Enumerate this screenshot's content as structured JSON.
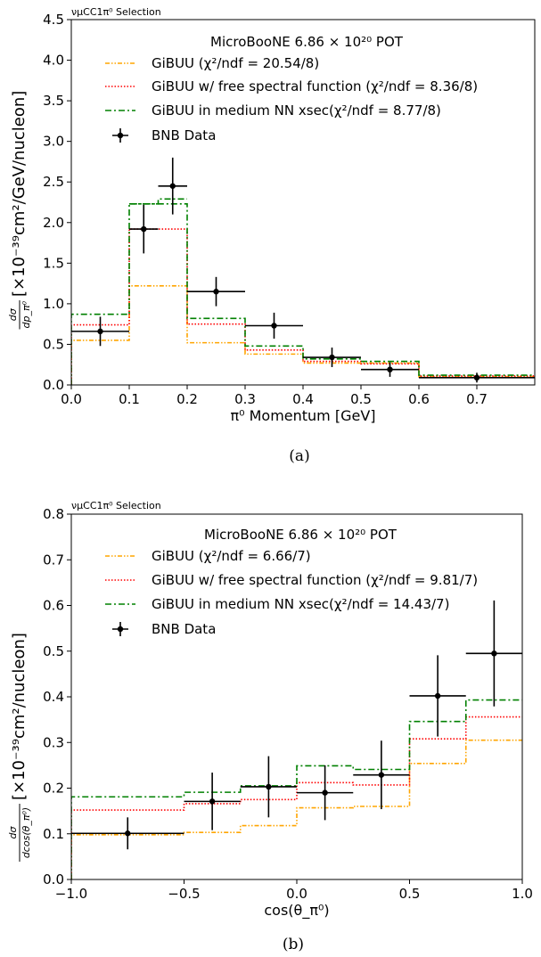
{
  "chart_data": [
    {
      "type": "step",
      "caption": "(a)",
      "selection_label": "νμCC1π⁰ Selection",
      "title": "MicroBooNE 6.86 × 10²⁰ POT",
      "xlabel": "π⁰ Momentum [GeV]",
      "ylabel_fraction": "dσ/dp_π⁰",
      "ylabel_units": "[×10⁻³⁹cm²/GeV/nucleon]",
      "xlim": [
        0.0,
        0.8
      ],
      "ylim": [
        0.0,
        4.5
      ],
      "xticks": [
        "0.0",
        "0.1",
        "0.2",
        "0.3",
        "0.4",
        "0.5",
        "0.6",
        "0.7"
      ],
      "yticks": [
        "0.0",
        "0.5",
        "1.0",
        "1.5",
        "2.0",
        "2.5",
        "3.0",
        "3.5",
        "4.0",
        "4.5"
      ],
      "bin_edges": [
        0.0,
        0.1,
        0.2,
        0.3,
        0.4,
        0.5,
        0.6,
        0.8
      ],
      "series": [
        {
          "name": "GiBUU (χ²/ndf = 20.54/8)",
          "color": "#ffa500",
          "dash": "dashdotdot",
          "values": [
            0.55,
            1.22,
            0.52,
            0.38,
            0.27,
            0.27,
            0.1
          ]
        },
        {
          "name": "GiBUU w/ free spectral function (χ²/ndf = 8.36/8)",
          "color": "#ff0000",
          "dash": "dotted",
          "values": [
            0.74,
            1.92,
            0.75,
            0.43,
            0.29,
            0.26,
            0.11
          ]
        },
        {
          "name": "GiBUU in medium NN xsec(χ²/ndf = 8.77/8)",
          "color": "#008000",
          "dash": "dashdot",
          "overlay": {
            "x": [
              0.1,
              0.15,
              0.15,
              0.2
            ],
            "y": [
              2.23,
              2.23,
              2.29,
              2.29
            ]
          },
          "values": [
            0.87,
            2.23,
            0.82,
            0.48,
            0.32,
            0.29,
            0.12
          ]
        }
      ],
      "data_points": {
        "name": "BNB Data",
        "x": [
          0.05,
          0.125,
          0.175,
          0.25,
          0.35,
          0.45,
          0.55,
          0.7
        ],
        "xerr": [
          0.05,
          0.025,
          0.025,
          0.05,
          0.05,
          0.05,
          0.05,
          0.1
        ],
        "y": [
          0.66,
          1.92,
          2.45,
          1.15,
          0.73,
          0.34,
          0.19,
          0.09
        ],
        "yerr": [
          0.18,
          0.3,
          0.35,
          0.18,
          0.16,
          0.12,
          0.09,
          0.06
        ]
      }
    },
    {
      "type": "step",
      "caption": "(b)",
      "selection_label": "νμCC1π⁰ Selection",
      "title": "MicroBooNE 6.86 × 10²⁰ POT",
      "xlabel": "cos(θ_π⁰)",
      "ylabel_fraction": "dσ/dcos(θ_π⁰)",
      "ylabel_units": "[×10⁻³⁹cm²/nucleon]",
      "xlim": [
        -1.0,
        1.0
      ],
      "ylim": [
        0.0,
        0.8
      ],
      "xticks": [
        "−1.0",
        "−0.5",
        "0.0",
        "0.5",
        "1.0"
      ],
      "yticks": [
        "0.0",
        "0.1",
        "0.2",
        "0.3",
        "0.4",
        "0.5",
        "0.6",
        "0.7",
        "0.8"
      ],
      "bin_edges": [
        -1.0,
        -0.5,
        -0.25,
        0.0,
        0.25,
        0.5,
        0.75,
        1.0
      ],
      "series": [
        {
          "name": "GiBUU (χ²/ndf = 6.66/7)",
          "color": "#ffa500",
          "dash": "dashdotdot",
          "values": [
            0.098,
            0.103,
            0.118,
            0.157,
            0.16,
            0.254,
            0.305
          ]
        },
        {
          "name": "GiBUU w/ free spectral function (χ²/ndf = 9.81/7)",
          "color": "#ff0000",
          "dash": "dotted",
          "values": [
            0.152,
            0.166,
            0.175,
            0.212,
            0.207,
            0.308,
            0.356
          ]
        },
        {
          "name": "GiBUU in medium NN xsec(χ²/ndf = 14.43/7)",
          "color": "#008000",
          "dash": "dashdot",
          "values": [
            0.181,
            0.191,
            0.205,
            0.249,
            0.241,
            0.346,
            0.393
          ]
        }
      ],
      "data_points": {
        "name": "BNB Data",
        "x": [
          -0.75,
          -0.375,
          -0.125,
          0.125,
          0.375,
          0.625,
          0.875
        ],
        "xerr": [
          0.25,
          0.125,
          0.125,
          0.125,
          0.125,
          0.125,
          0.125
        ],
        "y": [
          0.101,
          0.171,
          0.203,
          0.19,
          0.229,
          0.402,
          0.495
        ],
        "yerr": [
          0.035,
          0.063,
          0.067,
          0.06,
          0.075,
          0.089,
          0.116
        ]
      }
    }
  ]
}
